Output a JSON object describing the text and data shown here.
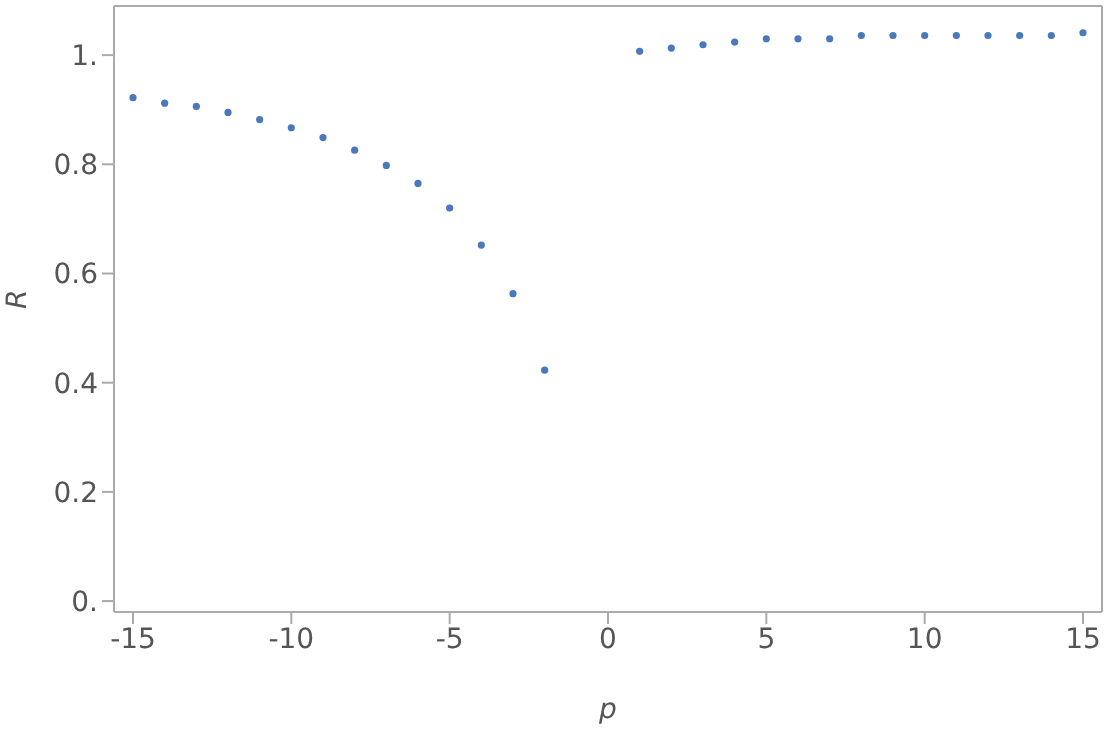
{
  "chart_data": {
    "type": "scatter",
    "xlabel": "p",
    "ylabel": "R",
    "x": [
      -15,
      -14,
      -13,
      -12,
      -11,
      -10,
      -9,
      -8,
      -7,
      -6,
      -5,
      -4,
      -3,
      -2,
      1,
      2,
      3,
      4,
      5,
      6,
      7,
      8,
      9,
      10,
      11,
      12,
      13,
      14,
      15
    ],
    "series": [
      {
        "color": "#4a78bd",
        "values": [
          0.922,
          0.912,
          0.906,
          0.895,
          0.882,
          0.867,
          0.849,
          0.826,
          0.798,
          0.765,
          0.72,
          0.652,
          0.563,
          0.423,
          1.007,
          1.013,
          1.019,
          1.024,
          1.03,
          1.03,
          1.03,
          1.036,
          1.036,
          1.036,
          1.036,
          1.036,
          1.036,
          1.036,
          1.041
        ]
      }
    ],
    "xlim": [
      -15.6,
      15.6
    ],
    "ylim": [
      -0.02,
      1.09
    ],
    "xticks": [
      -15,
      -10,
      -5,
      0,
      5,
      10,
      15
    ],
    "yticks": [
      {
        "value": 0,
        "label": "0."
      },
      0.2,
      0.4,
      0.6,
      0.8,
      {
        "value": 1,
        "label": "1."
      }
    ],
    "marker": "circle"
  }
}
